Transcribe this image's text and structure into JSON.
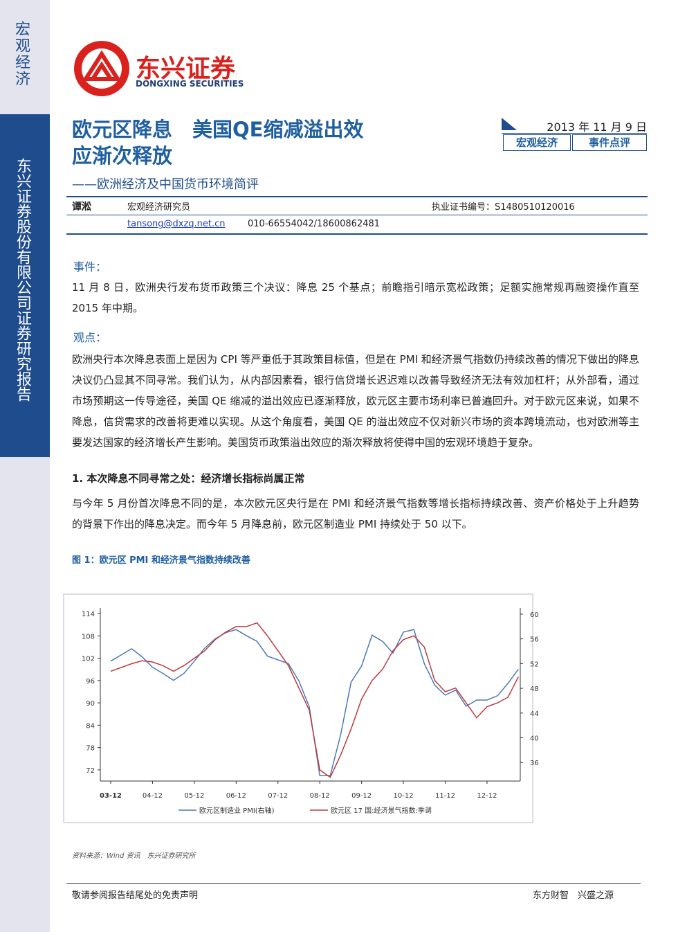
{
  "sidebar": {
    "category": "宏观经济",
    "company": "东兴证券股份有限公司证券研究报告"
  },
  "logo": {
    "name_cn": "东兴证券",
    "name_en": "DONGXING SECURITIES"
  },
  "header": {
    "title_lines": [
      "欧元区降息　美国QE缩减溢出效",
      "应渐次释放"
    ],
    "subtitle": "——欧洲经济及中国货币环境简评",
    "date": "2013 年 11 月 9 日",
    "tags": [
      "宏观经济",
      "事件点评"
    ]
  },
  "author": {
    "name": "谭淞",
    "role": "宏观经济研究员",
    "cert": "执业证书编号：S1480510120016",
    "email": "tansong@dxzq.net.cn",
    "phone": "010-66554042/18600862481"
  },
  "body": {
    "event_heading": "事件：",
    "event_text": "11 月 8 日，欧洲央行发布货币政策三个决议：降息 25 个基点；前瞻指引暗示宽松政策；足额实施常规再融资操作直至 2015 年中期。",
    "view_heading": "观点：",
    "view_text": "欧洲央行本次降息表面上是因为 CPI 等严重低于其政策目标值，但是在 PMI 和经济景气指数仍持续改善的情况下做出的降息决议仍凸显其不同寻常。我们认为，从内部因素看，银行信贷增长迟迟难以改善导致经济无法有效加杠杆；从外部看，通过市场预期这一传导途径，美国 QE 缩减的溢出效应已逐渐释放，欧元区主要市场利率已普遍回升。对于欧元区来说，如果不降息，信贷需求的改善将更难以实现。从这个角度看，美国 QE 的溢出效应不仅对新兴市场的资本跨境流动，也对欧洲等主要发达国家的经济增长产生影响。美国货币政策溢出效应的渐次释放将使得中国的宏观环境趋于复杂。",
    "section1_heading": "1. 本次降息不同寻常之处：经济增长指标尚属正常",
    "section1_text": "与今年 5 月份首次降息不同的是，本次欧元区央行是在 PMI 和经济景气指数等增长指标持续改善、资产价格处于上升趋势的背景下作出的降息决定。而今年 5 月降息前，欧元区制造业 PMI 持续处于 50 以下。"
  },
  "chart_data": {
    "type": "line",
    "title": "图 1：欧元区 PMI 和经济景气指数持续改善",
    "source": "资料来源：Wind 资讯　东兴证券研究所",
    "categories": [
      "03-12",
      null,
      null,
      null,
      "04-12",
      null,
      null,
      null,
      "05-12",
      null,
      null,
      null,
      "06-12",
      null,
      null,
      null,
      "07-12",
      null,
      null,
      null,
      "08-12",
      null,
      null,
      null,
      "09-12",
      null,
      null,
      null,
      "10-12",
      null,
      null,
      null,
      "11-12",
      null,
      null,
      null,
      "12-12",
      null,
      null,
      null
    ],
    "ylim": [
      69,
      115.5
    ],
    "yticks": [
      72,
      78,
      84,
      90,
      96,
      102,
      108,
      114
    ],
    "y2lim": [
      33,
      61
    ],
    "y2ticks": [
      36,
      40,
      44,
      48,
      52,
      56,
      60
    ],
    "series": [
      {
        "name": "欧元区制造业 PMI(右轴)",
        "color": "#4a78b8",
        "axis": "y2",
        "values": [
          52.4,
          53.4,
          54.4,
          53.1,
          51.4,
          50.4,
          49.3,
          50.4,
          52.4,
          54.5,
          56,
          57,
          57.5,
          56.5,
          55.6,
          53.2,
          52.6,
          52,
          49.2,
          45,
          33.9,
          33.9,
          40.5,
          49,
          51.6,
          56.6,
          55.6,
          53.7,
          57.1,
          57.5,
          52,
          48.5,
          46.9,
          47.7,
          45.1,
          46.1,
          46.1,
          46.8,
          48.8,
          51.1
        ]
      },
      {
        "name": "欧元区 17 国:经济景气指数:季调",
        "color": "#c0393b",
        "values": [
          98.5,
          99.5,
          100.5,
          101.3,
          101,
          100,
          98.5,
          100,
          102,
          104,
          107,
          109,
          110.5,
          110.5,
          111.5,
          108,
          104,
          100,
          94,
          88,
          72,
          70,
          76,
          83,
          91,
          96,
          99,
          104,
          107,
          108,
          105,
          96,
          93,
          94,
          90,
          86,
          89,
          90,
          91.5,
          97
        ]
      }
    ]
  },
  "footer": {
    "left": "敬请参阅报告结尾处的免责声明",
    "right": "东方财智　兴盛之源"
  }
}
